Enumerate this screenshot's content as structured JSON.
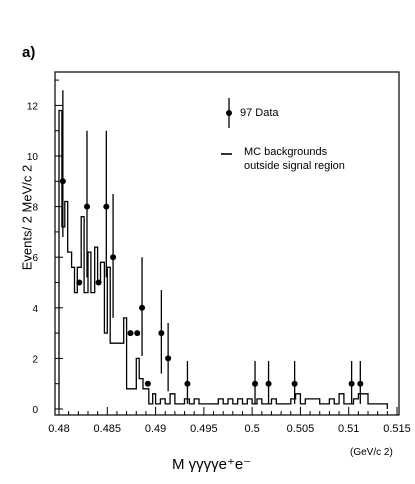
{
  "chart_data": {
    "type": "histogram",
    "panel_label": "a)",
    "ylabel": "Events/ 2 MeV/c 2",
    "xlabel": "M γγγγe⁺e⁻",
    "x_unit": "(GeV/c 2)",
    "xlim": [
      0.48,
      0.515
    ],
    "ylim": [
      0,
      13.5
    ],
    "x_ticks": [
      "0.48",
      "0.485",
      "0.49",
      "0.495",
      "0.5",
      "0.505",
      "0.51",
      "0.515"
    ],
    "y_ticks": [
      "0",
      "2",
      "4",
      "6",
      "8",
      "10",
      "12"
    ],
    "legend": {
      "data_label": "97 Data",
      "mc_label_line1": "MC backgrounds",
      "mc_label_line2": "outside signal region"
    },
    "data_points": [
      {
        "x": 0.4804,
        "y": 9,
        "err_lo": 2.2,
        "err_hi": 3.6
      },
      {
        "x": 0.4821,
        "y": 5,
        "err_lo": 0,
        "err_hi": 0
      },
      {
        "x": 0.4829,
        "y": 8,
        "err_lo": 2.8,
        "err_hi": 3.0
      },
      {
        "x": 0.4841,
        "y": 5,
        "err_lo": 0,
        "err_hi": 0
      },
      {
        "x": 0.4849,
        "y": 8,
        "err_lo": 2.8,
        "err_hi": 3.0
      },
      {
        "x": 0.4856,
        "y": 6,
        "err_lo": 2.4,
        "err_hi": 2.5
      },
      {
        "x": 0.4874,
        "y": 3,
        "err_lo": 0,
        "err_hi": 0
      },
      {
        "x": 0.4881,
        "y": 3,
        "err_lo": 0,
        "err_hi": 0
      },
      {
        "x": 0.4886,
        "y": 4,
        "err_lo": 1.9,
        "err_hi": 2.0
      },
      {
        "x": 0.4892,
        "y": 1,
        "err_lo": 0,
        "err_hi": 0
      },
      {
        "x": 0.4906,
        "y": 3,
        "err_lo": 1.6,
        "err_hi": 1.7
      },
      {
        "x": 0.4913,
        "y": 2,
        "err_lo": 1.3,
        "err_hi": 1.4
      },
      {
        "x": 0.4933,
        "y": 1,
        "err_lo": 0.8,
        "err_hi": 0.9
      },
      {
        "x": 0.5003,
        "y": 1,
        "err_lo": 0.8,
        "err_hi": 0.9
      },
      {
        "x": 0.5017,
        "y": 1,
        "err_lo": 0.8,
        "err_hi": 0.9
      },
      {
        "x": 0.5044,
        "y": 1,
        "err_lo": 0.8,
        "err_hi": 0.9
      },
      {
        "x": 0.5103,
        "y": 1,
        "err_lo": 0.8,
        "err_hi": 0.9
      },
      {
        "x": 0.5112,
        "y": 1,
        "err_lo": 0.8,
        "err_hi": 0.9
      }
    ],
    "mc_histogram": {
      "edges": [
        0.48,
        0.4803,
        0.4806,
        0.4809,
        0.4813,
        0.4816,
        0.4819,
        0.4823,
        0.4826,
        0.483,
        0.4833,
        0.4837,
        0.484,
        0.4843,
        0.4847,
        0.485,
        0.4853,
        0.4857,
        0.486,
        0.4863,
        0.4867,
        0.487,
        0.4873,
        0.4877,
        0.488,
        0.4883,
        0.4887,
        0.489,
        0.4893,
        0.4897,
        0.49,
        0.4905,
        0.491,
        0.4915,
        0.492,
        0.4925,
        0.493,
        0.4935,
        0.494,
        0.4945,
        0.495,
        0.4955,
        0.496,
        0.4965,
        0.497,
        0.4975,
        0.498,
        0.4985,
        0.499,
        0.4995,
        0.5,
        0.5005,
        0.501,
        0.5015,
        0.502,
        0.5025,
        0.503,
        0.5035,
        0.504,
        0.5045,
        0.505,
        0.5055,
        0.506,
        0.5065,
        0.507,
        0.5075,
        0.508,
        0.5085,
        0.509,
        0.5095,
        0.51,
        0.5105,
        0.511,
        0.5115,
        0.512,
        0.513,
        0.514
      ],
      "values": [
        11.8,
        7.2,
        8.2,
        6.2,
        5.6,
        4.6,
        5.6,
        7.6,
        4.6,
        6.2,
        4.6,
        6.4,
        5.0,
        5.8,
        3.0,
        5.6,
        2.6,
        2.6,
        2.6,
        2.6,
        3.6,
        0.8,
        0.8,
        0.8,
        2.0,
        1.2,
        0.8,
        0.8,
        0.2,
        0.6,
        0.2,
        0.4,
        0.2,
        0.6,
        0.2,
        0.2,
        0.4,
        0.2,
        0.4,
        0.2,
        0.2,
        0.2,
        0.2,
        0.4,
        0.2,
        0.4,
        0.2,
        0.4,
        0.2,
        0.4,
        0.2,
        0.4,
        0.2,
        0.2,
        0.4,
        0.2,
        0.2,
        0.2,
        0.4,
        0.6,
        0.2,
        0.4,
        0.4,
        0.4,
        0.2,
        0.2,
        0.4,
        0.2,
        0.6,
        0.2,
        0.2,
        0.4,
        0.6,
        0.6,
        0.2,
        0.2,
        0.0
      ]
    }
  }
}
